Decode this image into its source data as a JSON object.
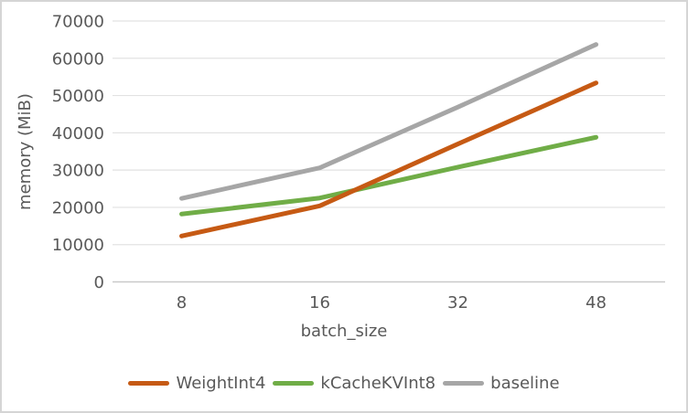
{
  "chart_data": {
    "type": "line",
    "title": "",
    "xlabel": "batch_size",
    "ylabel": "memory (MiB)",
    "categories": [
      "8",
      "16",
      "32",
      "48"
    ],
    "y_ticks": [
      0,
      10000,
      20000,
      30000,
      40000,
      50000,
      60000,
      70000
    ],
    "ylim": [
      0,
      70000
    ],
    "grid": "horizontal-only",
    "legend_position": "bottom",
    "series": [
      {
        "name": "WeightInt4",
        "color": "#c65a14",
        "values": [
          12300,
          20400,
          37000,
          53400
        ]
      },
      {
        "name": "kCacheKVInt8",
        "color": "#70ad47",
        "values": [
          18200,
          22500,
          30800,
          38800
        ]
      },
      {
        "name": "baseline",
        "color": "#a6a6a6",
        "values": [
          22400,
          30600,
          46900,
          63700
        ]
      }
    ]
  },
  "style": {
    "gridline_color": "#e2e2e2",
    "axis_line_color": "#c9c9c9",
    "text_color": "#595959",
    "frame_border_color": "#d5d5d5"
  }
}
